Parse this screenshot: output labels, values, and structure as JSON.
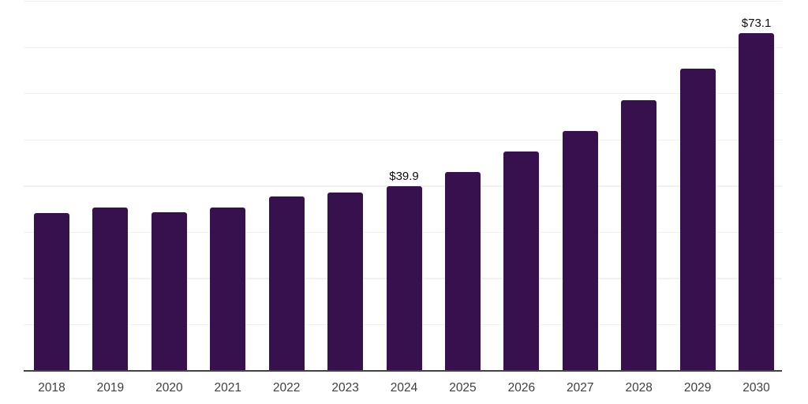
{
  "chart_data": {
    "type": "bar",
    "title": "",
    "xlabel": "",
    "ylabel": "",
    "categories": [
      "2018",
      "2019",
      "2020",
      "2021",
      "2022",
      "2023",
      "2024",
      "2025",
      "2026",
      "2027",
      "2028",
      "2029",
      "2030"
    ],
    "values": [
      34.2,
      35.4,
      34.3,
      35.4,
      37.7,
      38.6,
      39.9,
      43.1,
      47.4,
      51.9,
      58.5,
      65.4,
      73.1
    ],
    "data_labels": [
      "",
      "",
      "",
      "",
      "",
      "",
      "$39.9",
      "",
      "",
      "",
      "",
      "",
      "$73.1"
    ],
    "ylim": [
      0,
      80
    ],
    "gridline_step": 10,
    "grid": true,
    "legend": false,
    "y_axis_labels_shown": false,
    "colors": {
      "bar": "#36114D",
      "gridline": "#f1f1f1",
      "axis_line": "#424242",
      "tick_label": "#3f3f3f",
      "data_label": "#0d0d0d",
      "background": "#ffffff"
    }
  }
}
